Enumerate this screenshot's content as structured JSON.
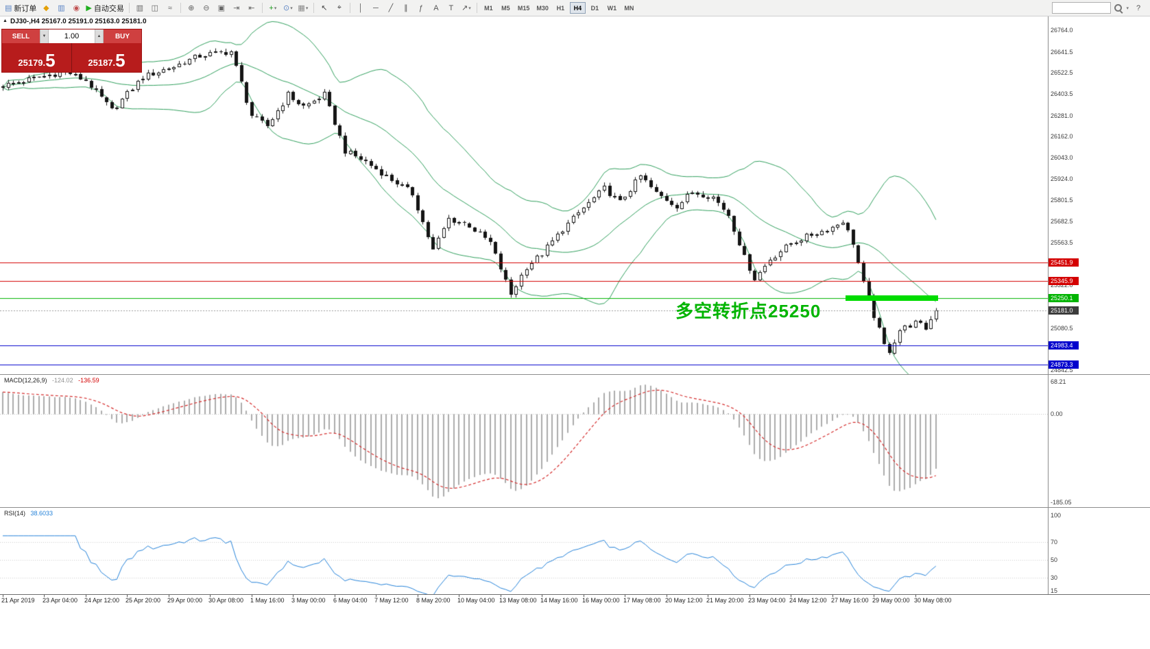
{
  "toolbar": {
    "caret_glyph": "▾",
    "help_glyph": "?",
    "search_placeholder": "",
    "items": [
      {
        "type": "button",
        "name": "new-order-button",
        "glyph": "▤",
        "glyph_color": "#5b84c4",
        "label": "新订单"
      },
      {
        "type": "button",
        "name": "profiles-icon",
        "glyph": "◆",
        "glyph_color": "#e3a008"
      },
      {
        "type": "button",
        "name": "market-watch-icon",
        "glyph": "▥",
        "glyph_color": "#5b84c4"
      },
      {
        "type": "button",
        "name": "data-window-icon",
        "glyph": "◉",
        "glyph_color": "#c05050"
      },
      {
        "type": "button",
        "name": "autotrading-button",
        "glyph": "▶",
        "glyph_color": "#1faf1f",
        "label": "自动交易"
      },
      {
        "type": "sep"
      },
      {
        "type": "button",
        "name": "bar-chart-icon",
        "glyph": "▥",
        "glyph_color": "#666666"
      },
      {
        "type": "button",
        "name": "candlestick-chart-icon",
        "glyph": "◫",
        "glyph_color": "#666666"
      },
      {
        "type": "button",
        "name": "line-chart-icon",
        "glyph": "≈",
        "glyph_color": "#666666"
      },
      {
        "type": "sep"
      },
      {
        "type": "button",
        "name": "zoom-in-icon",
        "glyph": "⊕",
        "glyph_color": "#666666"
      },
      {
        "type": "button",
        "name": "zoom-out-icon",
        "glyph": "⊖",
        "glyph_color": "#666666"
      },
      {
        "type": "button",
        "name": "tile-windows-icon",
        "glyph": "▣",
        "glyph_color": "#666666"
      },
      {
        "type": "button",
        "name": "auto-scroll-icon",
        "glyph": "⇥",
        "glyph_color": "#666666"
      },
      {
        "type": "button",
        "name": "chart-shift-icon",
        "glyph": "⇤",
        "glyph_color": "#666666"
      },
      {
        "type": "sep"
      },
      {
        "type": "button",
        "name": "indicators-icon",
        "glyph": "+",
        "glyph_color": "#1a9b1a",
        "caret": true
      },
      {
        "type": "button",
        "name": "periods-icon",
        "glyph": "⊙",
        "glyph_color": "#5b84c4",
        "caret": true
      },
      {
        "type": "button",
        "name": "templates-icon",
        "glyph": "▦",
        "glyph_color": "#888888",
        "caret": true
      },
      {
        "type": "sep"
      },
      {
        "type": "button",
        "name": "cursor-icon",
        "glyph": "↖",
        "glyph_color": "#444444"
      },
      {
        "type": "button",
        "name": "crosshair-icon",
        "glyph": "⌖",
        "glyph_color": "#444444"
      },
      {
        "type": "sep"
      },
      {
        "type": "button",
        "name": "vertical-line-icon",
        "glyph": "│",
        "glyph_color": "#555555"
      },
      {
        "type": "button",
        "name": "horizontal-line-icon",
        "glyph": "─",
        "glyph_color": "#555555"
      },
      {
        "type": "button",
        "name": "trendline-icon",
        "glyph": "╱",
        "glyph_color": "#555555"
      },
      {
        "type": "button",
        "name": "channel-icon",
        "glyph": "∥",
        "glyph_color": "#555555"
      },
      {
        "type": "button",
        "name": "fibonacci-icon",
        "glyph": "ƒ",
        "glyph_color": "#555555"
      },
      {
        "type": "button",
        "name": "text-icon",
        "glyph": "A",
        "glyph_color": "#555555"
      },
      {
        "type": "button",
        "name": "label-icon",
        "glyph": "T",
        "glyph_color": "#555555"
      },
      {
        "type": "button",
        "name": "arrows-icon",
        "glyph": "↗",
        "glyph_color": "#555555",
        "caret": true
      },
      {
        "type": "sep"
      }
    ],
    "timeframes": [
      "M1",
      "M5",
      "M15",
      "M30",
      "H1",
      "H4",
      "D1",
      "W1",
      "MN"
    ],
    "active_timeframe": "H4"
  },
  "chart": {
    "header": "DJ30-,H4 25167.0 25191.0 25163.0 25181.0",
    "collapse_glyph": "▲"
  },
  "trade_panel": {
    "sell_label": "SELL",
    "buy_label": "BUY",
    "volume": "1.00",
    "vol_down_glyph": "▼",
    "vol_up_glyph": "▲",
    "sell_price": "25179.5",
    "buy_price": "25187.5",
    "sell_price_small": "25179.",
    "sell_price_big": "5",
    "buy_price_small": "25187.",
    "buy_price_big": "5"
  },
  "chart_data": {
    "type": "candlestick",
    "symbol": "DJ30-",
    "period": "H4",
    "ohlc": {
      "open": "25167.0",
      "high": "25191.0",
      "low": "25163.0",
      "close": "25181.0"
    },
    "bars": 181,
    "last_close": 25181.0,
    "anchors": [
      [
        0,
        26450
      ],
      [
        6,
        26490
      ],
      [
        12,
        26530
      ],
      [
        16,
        26480
      ],
      [
        21,
        26310
      ],
      [
        27,
        26500
      ],
      [
        33,
        26560
      ],
      [
        38,
        26620
      ],
      [
        44,
        26645
      ],
      [
        48,
        26280
      ],
      [
        51,
        26220
      ],
      [
        55,
        26400
      ],
      [
        58,
        26330
      ],
      [
        62,
        26400
      ],
      [
        66,
        26080
      ],
      [
        70,
        26020
      ],
      [
        74,
        25940
      ],
      [
        79,
        25840
      ],
      [
        83,
        25520
      ],
      [
        86,
        25700
      ],
      [
        90,
        25660
      ],
      [
        94,
        25560
      ],
      [
        98,
        25270
      ],
      [
        101,
        25430
      ],
      [
        104,
        25500
      ],
      [
        108,
        25640
      ],
      [
        112,
        25760
      ],
      [
        116,
        25870
      ],
      [
        119,
        25790
      ],
      [
        123,
        25940
      ],
      [
        126,
        25840
      ],
      [
        130,
        25770
      ],
      [
        133,
        25850
      ],
      [
        137,
        25820
      ],
      [
        140,
        25720
      ],
      [
        143,
        25480
      ],
      [
        145,
        25360
      ],
      [
        148,
        25470
      ],
      [
        152,
        25560
      ],
      [
        156,
        25610
      ],
      [
        160,
        25650
      ],
      [
        162,
        25690
      ],
      [
        164,
        25560
      ],
      [
        166,
        25330
      ],
      [
        168,
        25150
      ],
      [
        170,
        24980
      ],
      [
        171,
        24950
      ],
      [
        173,
        25070
      ],
      [
        176,
        25110
      ],
      [
        178,
        25080
      ],
      [
        180,
        25181
      ]
    ],
    "price_axis_labels": [
      "26764.0",
      "26641.5",
      "26522.5",
      "26403.5",
      "26281.0",
      "26162.0",
      "26043.0",
      "25924.0",
      "25801.5",
      "25682.5",
      "25563.5",
      "25322.0",
      "25080.5",
      "24842.5"
    ],
    "hlines": [
      {
        "price": 25451.9,
        "label": "25451.9",
        "color": "#d40000",
        "type": "resistance"
      },
      {
        "price": 25345.9,
        "label": "25345.9",
        "color": "#d40000",
        "type": "resistance"
      },
      {
        "price": 25250.1,
        "label": "25250.1",
        "color": "#00b400",
        "type": "pivot"
      },
      {
        "price": 24983.4,
        "label": "24983.4",
        "color": "#0000cd",
        "type": "support"
      },
      {
        "price": 24873.3,
        "label": "24873.3",
        "color": "#0000cd",
        "type": "support"
      }
    ],
    "bid": {
      "price": 25181.0,
      "label": "25181.0",
      "color": "#3c3c3c"
    },
    "highlight": {
      "from_bar": 163,
      "to_bar": 180,
      "price": 25250.1,
      "color": "#00dc00"
    },
    "annotation": {
      "text": "多空转折点25250",
      "color": "#00b400"
    },
    "bollinger": {
      "period": 20,
      "deviation": 2,
      "color": "#2e9e5b"
    },
    "time_labels": [
      "21 Apr 2019",
      "23 Apr 04:00",
      "24 Apr 12:00",
      "25 Apr 20:00",
      "29 Apr 00:00",
      "30 Apr 08:00",
      "1 May 16:00",
      "3 May 00:00",
      "6 May 04:00",
      "7 May 12:00",
      "8 May 20:00",
      "10 May 04:00",
      "13 May 08:00",
      "14 May 16:00",
      "16 May 00:00",
      "17 May 08:00",
      "20 May 12:00",
      "21 May 20:00",
      "23 May 04:00",
      "24 May 12:00",
      "27 May 16:00",
      "29 May 00:00",
      "30 May 08:00"
    ],
    "macd": {
      "label": "MACD(12,26,9)",
      "value_main": "-124.02",
      "value_signal": "-136.59",
      "axis_labels": [
        "68.21",
        "0.00",
        "-185.05"
      ],
      "histogram_color": "#ababab",
      "signal_color": "#d42a2a"
    },
    "rsi": {
      "label": "RSI(14)",
      "value": "38.6033",
      "axis_labels": [
        "100",
        "70",
        "50",
        "30",
        "15"
      ],
      "line_color": "#2381d8",
      "levels": [
        70,
        50,
        30
      ]
    }
  }
}
